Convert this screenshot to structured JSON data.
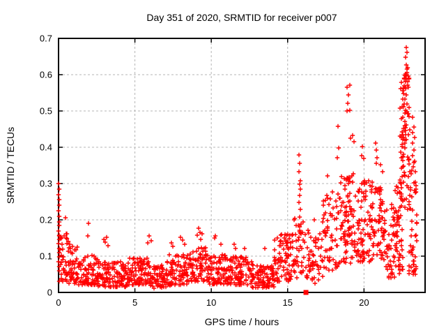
{
  "title": "Day 351 of 2020, SRMTID for receiver p007",
  "colors": {
    "marker": "#ff0000",
    "grid": "#b4b4b4",
    "border": "#000000",
    "text": "#000000",
    "background": "#ffffff"
  },
  "chart_data": {
    "type": "scatter",
    "title": "Day 351 of 2020, SRMTID for receiver p007",
    "xlabel": "GPS time / hours",
    "ylabel": "SRMTID / TECUs",
    "xlim": [
      0,
      24
    ],
    "ylim": [
      0,
      0.7
    ],
    "xtick_values": [
      0,
      5,
      10,
      15,
      20
    ],
    "xtick_labels": [
      "0",
      "5",
      "10",
      "15",
      "20"
    ],
    "ytick_values": [
      0,
      0.1,
      0.2,
      0.3,
      0.4,
      0.5,
      0.6,
      0.7
    ],
    "ytick_labels": [
      "0",
      "0.1",
      "0.2",
      "0.3",
      "0.4",
      "0.5",
      "0.6",
      "0.7"
    ],
    "grid": true,
    "legend": "none",
    "marker": "plus",
    "marker_color": "#ff0000",
    "square_marker": {
      "x": 16.2,
      "y": 0.0
    },
    "outlier_points": [
      [
        0.02,
        0.3
      ],
      [
        0.04,
        0.285
      ],
      [
        0.02,
        0.27
      ],
      [
        0.05,
        0.255
      ],
      [
        0.03,
        0.24
      ],
      [
        0.02,
        0.225
      ],
      [
        0.04,
        0.21
      ],
      [
        0.03,
        0.195
      ],
      [
        0.05,
        0.185
      ],
      [
        0.02,
        0.17
      ],
      [
        0.04,
        0.158
      ],
      [
        0.03,
        0.147
      ],
      [
        0.02,
        0.135
      ],
      [
        0.05,
        0.122
      ],
      [
        0.03,
        0.11
      ],
      [
        0.04,
        0.098
      ],
      [
        0.02,
        0.085
      ],
      [
        0.03,
        0.072
      ],
      [
        0.05,
        0.06
      ],
      [
        0.45,
        0.205
      ],
      [
        0.5,
        0.162
      ],
      [
        0.55,
        0.148
      ],
      [
        0.65,
        0.14
      ],
      [
        0.75,
        0.132
      ],
      [
        0.9,
        0.126
      ],
      [
        1.05,
        0.118
      ],
      [
        1.9,
        0.155
      ],
      [
        1.97,
        0.19
      ],
      [
        2.95,
        0.146
      ],
      [
        3.05,
        0.138
      ],
      [
        3.15,
        0.152
      ],
      [
        3.25,
        0.128
      ],
      [
        5.85,
        0.136
      ],
      [
        5.95,
        0.156
      ],
      [
        6.05,
        0.142
      ],
      [
        7.4,
        0.136
      ],
      [
        7.5,
        0.126
      ],
      [
        8.0,
        0.152
      ],
      [
        8.12,
        0.144
      ],
      [
        8.28,
        0.132
      ],
      [
        9.1,
        0.157
      ],
      [
        9.18,
        0.176
      ],
      [
        9.25,
        0.166
      ],
      [
        9.33,
        0.147
      ],
      [
        9.4,
        0.161
      ],
      [
        10.2,
        0.15
      ],
      [
        10.27,
        0.156
      ],
      [
        10.62,
        0.132
      ],
      [
        11.5,
        0.132
      ],
      [
        11.58,
        0.122
      ],
      [
        12.2,
        0.121
      ],
      [
        13.5,
        0.122
      ],
      [
        14.32,
        0.15
      ],
      [
        14.55,
        0.142
      ],
      [
        14.9,
        0.157
      ],
      [
        15.72,
        0.378
      ],
      [
        15.78,
        0.356
      ],
      [
        15.75,
        0.332
      ],
      [
        15.82,
        0.308
      ],
      [
        15.78,
        0.298
      ],
      [
        15.85,
        0.285
      ],
      [
        15.8,
        0.268
      ],
      [
        15.76,
        0.248
      ],
      [
        15.83,
        0.228
      ],
      [
        15.79,
        0.208
      ],
      [
        15.86,
        0.188
      ],
      [
        15.8,
        0.168
      ],
      [
        15.74,
        0.152
      ],
      [
        16.8,
        0.025
      ],
      [
        17.0,
        0.122
      ],
      [
        17.35,
        0.252
      ],
      [
        17.62,
        0.322
      ],
      [
        18.28,
        0.458
      ],
      [
        18.32,
        0.398
      ],
      [
        18.25,
        0.372
      ],
      [
        18.9,
        0.565
      ],
      [
        18.95,
        0.522
      ],
      [
        18.88,
        0.5
      ],
      [
        19.05,
        0.572
      ],
      [
        19.0,
        0.545
      ],
      [
        19.08,
        0.502
      ],
      [
        19.12,
        0.425
      ],
      [
        19.27,
        0.432
      ],
      [
        19.33,
        0.415
      ],
      [
        19.9,
        0.402
      ],
      [
        19.85,
        0.377
      ],
      [
        19.97,
        0.37
      ],
      [
        20.75,
        0.412
      ],
      [
        20.8,
        0.392
      ],
      [
        20.87,
        0.372
      ],
      [
        20.82,
        0.356
      ],
      [
        21.1,
        0.352
      ],
      [
        21.22,
        0.332
      ],
      [
        22.75,
        0.675
      ],
      [
        22.8,
        0.662
      ],
      [
        22.7,
        0.648
      ],
      [
        22.76,
        0.627
      ],
      [
        22.82,
        0.615
      ],
      [
        22.7,
        0.602
      ],
      [
        22.76,
        0.588
      ],
      [
        22.86,
        0.572
      ],
      [
        22.7,
        0.562
      ],
      [
        22.6,
        0.548
      ],
      [
        22.78,
        0.545
      ],
      [
        22.66,
        0.532
      ],
      [
        22.82,
        0.52
      ],
      [
        22.6,
        0.512
      ],
      [
        22.72,
        0.502
      ],
      [
        22.86,
        0.492
      ],
      [
        22.56,
        0.482
      ],
      [
        22.66,
        0.472
      ],
      [
        22.76,
        0.462
      ],
      [
        22.6,
        0.452
      ],
      [
        22.5,
        0.442
      ],
      [
        22.7,
        0.435
      ],
      [
        22.56,
        0.422
      ],
      [
        22.66,
        0.412
      ],
      [
        22.5,
        0.402
      ],
      [
        22.4,
        0.386
      ],
      [
        22.6,
        0.38
      ],
      [
        22.46,
        0.372
      ],
      [
        23.2,
        0.482
      ],
      [
        23.26,
        0.456
      ],
      [
        23.16,
        0.44
      ],
      [
        23.3,
        0.426
      ],
      [
        23.2,
        0.412
      ],
      [
        23.26,
        0.392
      ],
      [
        23.16,
        0.376
      ],
      [
        23.3,
        0.362
      ],
      [
        23.22,
        0.346
      ],
      [
        23.35,
        0.332
      ]
    ],
    "density_bands": [
      {
        "x0": 0.05,
        "x1": 0.6,
        "n": 35,
        "ylo": 0.03,
        "yhi": 0.17,
        "skew": 1.6
      },
      {
        "x0": 0.6,
        "x1": 1.3,
        "n": 45,
        "ylo": 0.025,
        "yhi": 0.125,
        "skew": 1.5
      },
      {
        "x0": 1.3,
        "x1": 2.6,
        "n": 85,
        "ylo": 0.02,
        "yhi": 0.105,
        "skew": 1.5
      },
      {
        "x0": 2.6,
        "x1": 4.6,
        "n": 125,
        "ylo": 0.015,
        "yhi": 0.085,
        "skew": 1.4
      },
      {
        "x0": 4.6,
        "x1": 6.1,
        "n": 90,
        "ylo": 0.02,
        "yhi": 0.095,
        "skew": 1.4
      },
      {
        "x0": 6.1,
        "x1": 7.1,
        "n": 60,
        "ylo": 0.012,
        "yhi": 0.075,
        "skew": 1.3
      },
      {
        "x0": 7.1,
        "x1": 8.6,
        "n": 95,
        "ylo": 0.02,
        "yhi": 0.105,
        "skew": 1.4
      },
      {
        "x0": 8.6,
        "x1": 9.7,
        "n": 70,
        "ylo": 0.03,
        "yhi": 0.125,
        "skew": 1.3
      },
      {
        "x0": 9.7,
        "x1": 11.1,
        "n": 90,
        "ylo": 0.022,
        "yhi": 0.105,
        "skew": 1.4
      },
      {
        "x0": 11.1,
        "x1": 12.7,
        "n": 95,
        "ylo": 0.02,
        "yhi": 0.1,
        "skew": 1.4
      },
      {
        "x0": 12.7,
        "x1": 14.1,
        "n": 85,
        "ylo": 0.012,
        "yhi": 0.075,
        "skew": 1.3
      },
      {
        "x0": 14.1,
        "x1": 15.3,
        "n": 80,
        "ylo": 0.03,
        "yhi": 0.16,
        "skew": 1.4
      },
      {
        "x0": 15.3,
        "x1": 16.15,
        "n": 45,
        "ylo": 0.04,
        "yhi": 0.21,
        "skew": 1.4
      },
      {
        "x0": 16.2,
        "x1": 17.3,
        "n": 55,
        "ylo": 0.035,
        "yhi": 0.2,
        "skew": 1.3
      },
      {
        "x0": 17.3,
        "x1": 18.4,
        "n": 60,
        "ylo": 0.06,
        "yhi": 0.28,
        "skew": 1.2
      },
      {
        "x0": 18.4,
        "x1": 19.6,
        "n": 95,
        "ylo": 0.08,
        "yhi": 0.33,
        "skew": 1.1
      },
      {
        "x0": 19.6,
        "x1": 20.6,
        "n": 80,
        "ylo": 0.08,
        "yhi": 0.31,
        "skew": 1.1
      },
      {
        "x0": 20.6,
        "x1": 21.4,
        "n": 60,
        "ylo": 0.09,
        "yhi": 0.29,
        "skew": 1.1
      },
      {
        "x0": 21.4,
        "x1": 22.05,
        "n": 40,
        "ylo": 0.04,
        "yhi": 0.25,
        "skew": 1.2
      },
      {
        "x0": 22.05,
        "x1": 22.55,
        "n": 55,
        "ylo": 0.05,
        "yhi": 0.32,
        "skew": 1.1
      },
      {
        "x0": 22.35,
        "x1": 23.0,
        "n": 75,
        "ylo": 0.22,
        "yhi": 0.62,
        "skew": 1.0
      },
      {
        "x0": 22.95,
        "x1": 23.45,
        "n": 50,
        "ylo": 0.05,
        "yhi": 0.36,
        "skew": 1.2
      }
    ]
  }
}
